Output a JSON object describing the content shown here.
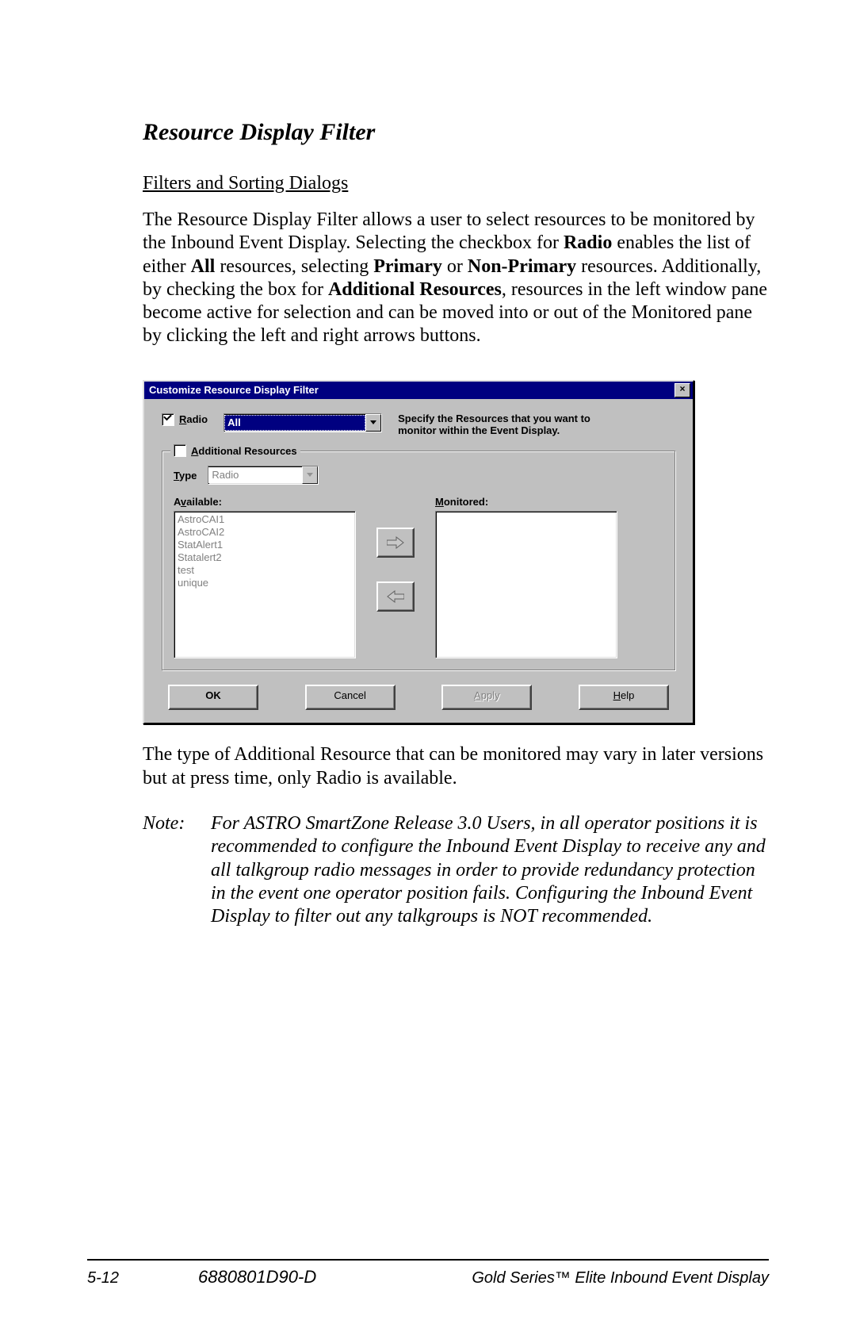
{
  "section_title": "Resource Display Filter",
  "subhead": "Filters and Sorting Dialogs",
  "para1_pre": "The Resource Display Filter allows a user to select resources to be monitored by the Inbound Event Display.  Selecting the checkbox for ",
  "para1_b1": "Radio",
  "para1_mid1": " enables the list of either ",
  "para1_b2": "All",
  "para1_mid2": " resources, selecting ",
  "para1_b3": "Primary",
  "para1_mid3": " or ",
  "para1_b4": "Non-Primary",
  "para1_mid4": " resources.  Additionally, by checking the box for ",
  "para1_b5": "Additional Resources",
  "para1_post": ", resources in the left window pane become active for selection and can be moved into or out of the Monitored pane by clicking the left and right arrows buttons.",
  "para2": "The type of Additional Resource that can be monitored may vary in later versions but at press time, only Radio is available.",
  "note_label": "Note:",
  "note_body": "For ASTRO SmartZone Release 3.0 Users, in all operator positions it is recommended to configure the Inbound Event Display to receive any and all talkgroup radio messages in order to provide redundancy protection in the event one operator position fails.  Configuring the Inbound Event Display to filter out any talkgroups is NOT recommended.",
  "dialog": {
    "title": "Customize Resource Display Filter",
    "radio_label_pre": "R",
    "radio_label_rest": "adio",
    "radio_dropdown_value": "All",
    "hint": "Specify the Resources that you want to monitor within the Event Display.",
    "groupbox_label_pre": "A",
    "groupbox_label_rest": "dditional Resources",
    "type_label_pre": "T",
    "type_label_rest": "ype",
    "type_value": "Radio",
    "available_label_pre": "A",
    "available_label_u": "v",
    "available_label_rest": "ailable:",
    "monitored_label_pre": "M",
    "monitored_label_rest": "onitored:",
    "available_items": [
      "AstroCAI1",
      "AstroCAI2",
      "StatAlert1",
      "Statalert2",
      "test",
      "unique"
    ],
    "buttons": {
      "ok": "OK",
      "cancel": "Cancel",
      "apply_pre": "A",
      "apply_rest": "pply",
      "help_pre": "H",
      "help_rest": "elp"
    }
  },
  "footer": {
    "page": "5-12",
    "docnum": "6880801D90-D",
    "product": "Gold Series™ Elite Inbound Event Display"
  },
  "colors": {
    "titlebar": "#000080",
    "dialog_face": "#c0c0c0",
    "disabled_text": "#808080"
  }
}
